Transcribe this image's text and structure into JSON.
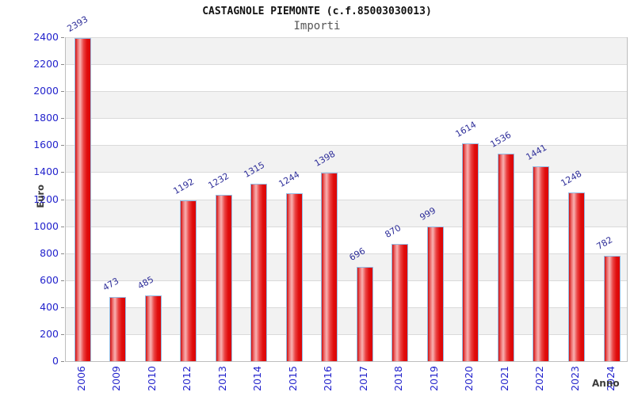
{
  "chart_data": {
    "type": "bar",
    "title": "CASTAGNOLE PIEMONTE (c.f.85003030013)",
    "subtitle": "Importi",
    "xlabel": "Anno",
    "ylabel": "Euro",
    "categories": [
      "2006",
      "2009",
      "2010",
      "2012",
      "2013",
      "2014",
      "2015",
      "2016",
      "2017",
      "2018",
      "2019",
      "2020",
      "2021",
      "2022",
      "2023",
      "2024"
    ],
    "values": [
      2393,
      473,
      485,
      1192,
      1232,
      1315,
      1244,
      1398,
      696,
      870,
      999,
      1614,
      1536,
      1441,
      1248,
      782
    ],
    "ylim": [
      0,
      2400
    ],
    "ytick_step": 200,
    "grid": "alternating-horizontal-bands",
    "legend_position": "none",
    "value_labels_rotation_deg": -30,
    "xtick_rotation_deg": -90,
    "colors": {
      "bar_fill_edge": "#dc0606",
      "bar_fill_highlight": "#f8b2b2",
      "bar_border": "#94bce4",
      "tick_label": "#2323cc",
      "value_label": "#2e2e99",
      "axis_title": "#3a3a3a",
      "title": "#111111",
      "subtitle": "#555555",
      "band_light": "#ffffff",
      "band_gray": "#f2f2f2",
      "grid_line": "#dadada",
      "axis_line": "#bdbdbd",
      "background": "#ffffff"
    }
  }
}
